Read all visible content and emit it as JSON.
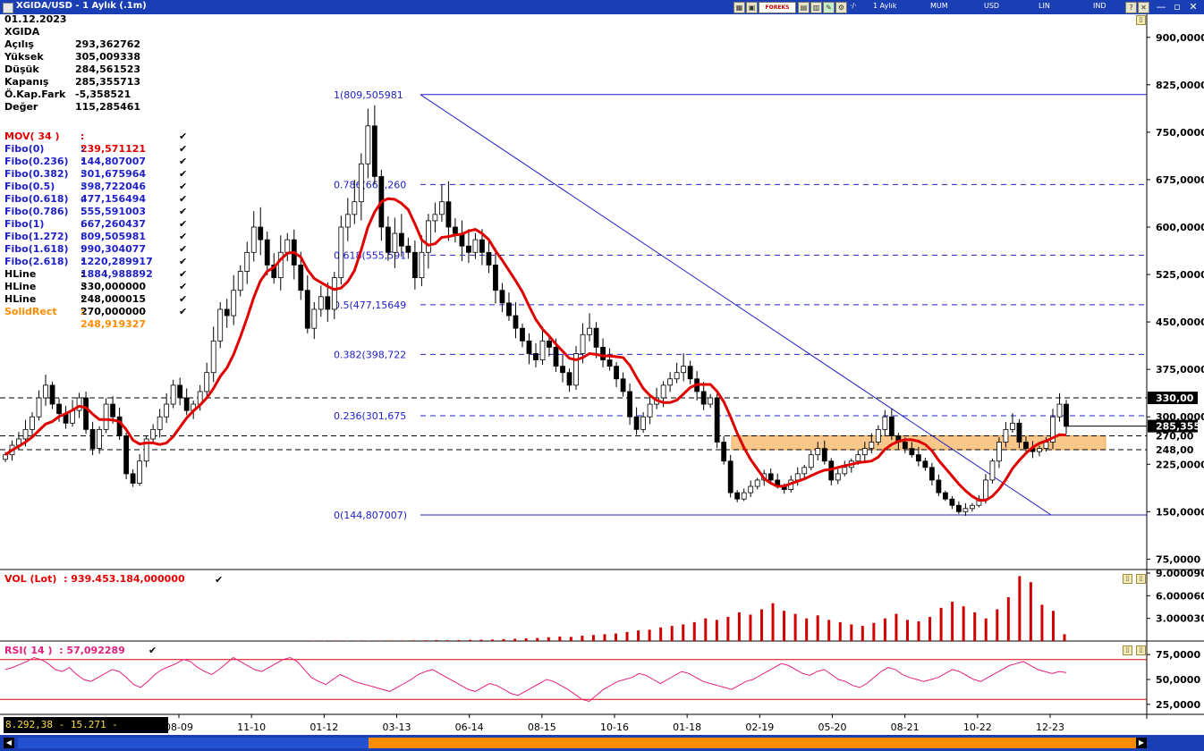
{
  "window": {
    "title": "XGIDA/USD - 1 Aylık (.1m)",
    "toolbar": [
      "1 Aylık",
      "MUM",
      "USD",
      "LIN",
      "IND"
    ],
    "forex_label": "FOREKS"
  },
  "info": {
    "date": "01.12.2023",
    "symbol": "XGIDA",
    "rows": [
      {
        "label": "Açılış",
        "value": "293,362762"
      },
      {
        "label": "Yüksek",
        "value": "305,009338"
      },
      {
        "label": "Düşük",
        "value": "284,561523"
      },
      {
        "label": "Kapanış",
        "value": "285,355713"
      },
      {
        "label": "Ö.Kap.Fark",
        "value": "-5,358521"
      },
      {
        "label": "Değer",
        "value": "115,285461"
      }
    ]
  },
  "indicators": [
    {
      "label": "MOV( 34 )",
      "value": ": 239,571121",
      "color": "#e00000"
    },
    {
      "label": "Fibo(0)",
      "value": ": 144,807007",
      "color": "#2020c8"
    },
    {
      "label": "Fibo(0.236)",
      "value": ": 301,675964",
      "color": "#2020c8"
    },
    {
      "label": "Fibo(0.382)",
      "value": ": 398,722046",
      "color": "#2020c8"
    },
    {
      "label": "Fibo(0.5)",
      "value": ": 477,156494",
      "color": "#2020c8"
    },
    {
      "label": "Fibo(0.618)",
      "value": ": 555,591003",
      "color": "#2020c8"
    },
    {
      "label": "Fibo(0.786)",
      "value": ": 667,260437",
      "color": "#2020c8"
    },
    {
      "label": "Fibo(1)",
      "value": ": 809,505981",
      "color": "#2020c8"
    },
    {
      "label": "Fibo(1.272)",
      "value": ": 990,304077",
      "color": "#2020c8"
    },
    {
      "label": "Fibo(1.618)",
      "value": ": 1220,289917",
      "color": "#2020c8"
    },
    {
      "label": "Fibo(2.618)",
      "value": ": 1884,988892",
      "color": "#2020c8"
    },
    {
      "label": "HLine",
      "value": ": 330,000000",
      "color": "#000000"
    },
    {
      "label": "HLine",
      "value": ": 248,000015",
      "color": "#000000"
    },
    {
      "label": "HLine",
      "value": ": 270,000000",
      "color": "#000000"
    },
    {
      "label": "SolidRect",
      "value": ": 248,919327",
      "color": "#ff8c00"
    }
  ],
  "vol": {
    "label": "VOL (Lot)",
    "value": ": 939.453.184,000000",
    "ticks": [
      "9.000090",
      "6.000060",
      "3.000030"
    ]
  },
  "rsi": {
    "label": "RSI( 14 )",
    "value": ": 57,092289",
    "ticks": [
      "75,0000",
      "50,0000",
      "25,0000"
    ]
  },
  "status_text": "8.292,38 - 15.271 - 15:02:40",
  "chart_data": {
    "type": "candlestick",
    "price_axis": {
      "min": 60,
      "max": 935,
      "ticks": [
        75,
        150,
        225,
        300,
        375,
        450,
        525,
        600,
        675,
        750,
        825,
        900
      ],
      "tick_labels": [
        "75,0000",
        "150,0000",
        "225,0000",
        "300,0000",
        "375,0000",
        "450,0000",
        "525,0000",
        "600,0000",
        "675,0000",
        "750,0000",
        "825,0000",
        "900,0000"
      ]
    },
    "x_tick_labels": [
      "08-09",
      "11-10",
      "01-12",
      "03-13",
      "06-14",
      "08-15",
      "10-16",
      "01-18",
      "02-19",
      "05-20",
      "08-21",
      "10-22",
      "12-23"
    ],
    "fibo_levels": [
      {
        "label": "1(809,505981",
        "value": 809.505981
      },
      {
        "label": "0.786(667,260",
        "value": 667.260437
      },
      {
        "label": "0.618(555,591",
        "value": 555.591003
      },
      {
        "label": "0.5(477,15649",
        "value": 477.156494
      },
      {
        "label": "0.382(398,722",
        "value": 398.722046
      },
      {
        "label": "0.236(301,675",
        "value": 301.675964
      },
      {
        "label": "0(144,807007)",
        "value": 144.807007
      }
    ],
    "hlines": [
      {
        "label": "330,00",
        "value": 330
      },
      {
        "label": "270,00",
        "value": 270
      },
      {
        "label": "248,00",
        "value": 248.000015
      }
    ],
    "last_price_label": "285,355",
    "last_price": 285.355713,
    "solid_rect": {
      "low": 248,
      "high": 270
    },
    "trendline": {
      "from": 809.505981,
      "to": 144.807007
    },
    "close_path": [
      240,
      255,
      265,
      280,
      300,
      330,
      350,
      320,
      305,
      290,
      310,
      330,
      280,
      250,
      280,
      320,
      300,
      270,
      210,
      195,
      230,
      265,
      280,
      300,
      320,
      350,
      330,
      310,
      320,
      340,
      370,
      420,
      470,
      460,
      500,
      530,
      560,
      600,
      580,
      540,
      520,
      560,
      580,
      540,
      500,
      440,
      470,
      490,
      470,
      520,
      600,
      620,
      640,
      700,
      760,
      680,
      600,
      560,
      590,
      570,
      560,
      520,
      560,
      610,
      620,
      640,
      600,
      590,
      570,
      560,
      580,
      560,
      540,
      500,
      480,
      460,
      440,
      420,
      400,
      390,
      420,
      410,
      380,
      370,
      350,
      400,
      430,
      440,
      410,
      390,
      380,
      360,
      340,
      300,
      280,
      300,
      320,
      330,
      350,
      360,
      370,
      380,
      360,
      340,
      320,
      330,
      260,
      230,
      180,
      170,
      180,
      190,
      200,
      210,
      200,
      190,
      185,
      200,
      210,
      220,
      240,
      250,
      230,
      200,
      210,
      220,
      230,
      240,
      250,
      260,
      280,
      300,
      270,
      260,
      250,
      240,
      230,
      220,
      200,
      180,
      170,
      160,
      150,
      155,
      160,
      170,
      200,
      230,
      260,
      280,
      290,
      260,
      250,
      245,
      250,
      260,
      300,
      320,
      285
    ],
    "mov_label": "MOV( 34 )",
    "mov_color": "#e00000",
    "volume": {
      "max": 9000090,
      "values": [
        0.05,
        0.06,
        0.07,
        0.06,
        0.05,
        0.06,
        0.07,
        0.08,
        0.07,
        0.09,
        0.1,
        0.12,
        0.11,
        0.13,
        0.15,
        0.17,
        0.2,
        0.25,
        0.3,
        0.35,
        0.4,
        0.5,
        0.6,
        0.55,
        0.7,
        0.8,
        0.9,
        1.0,
        1.2,
        1.4,
        1.5,
        1.8,
        2.0,
        2.2,
        2.5,
        3.0,
        2.8,
        3.2,
        3.8,
        3.5,
        4.2,
        5.0,
        4.0,
        3.6,
        3.0,
        3.4,
        2.8,
        2.5,
        2.2,
        2.0,
        2.4,
        3.0,
        3.6,
        2.8,
        2.6,
        3.2,
        4.4,
        5.2,
        4.6,
        3.8,
        3.0,
        4.2,
        5.8,
        8.6,
        7.8,
        4.8,
        4.0,
        0.9
      ]
    },
    "rsi": {
      "min": 15,
      "max": 85,
      "upper": 70,
      "lower": 30,
      "values": [
        60,
        62,
        65,
        68,
        72,
        70,
        66,
        60,
        58,
        62,
        55,
        50,
        48,
        52,
        56,
        60,
        58,
        52,
        45,
        42,
        48,
        55,
        60,
        63,
        66,
        70,
        68,
        62,
        58,
        55,
        60,
        66,
        72,
        68,
        64,
        60,
        58,
        62,
        66,
        70,
        72,
        68,
        60,
        52,
        48,
        45,
        50,
        55,
        52,
        48,
        46,
        44,
        42,
        40,
        38,
        42,
        46,
        50,
        55,
        58,
        60,
        56,
        52,
        48,
        44,
        40,
        38,
        42,
        46,
        44,
        40,
        36,
        34,
        38,
        42,
        46,
        50,
        48,
        44,
        40,
        35,
        30,
        28,
        34,
        40,
        44,
        48,
        50,
        52,
        56,
        54,
        50,
        46,
        50,
        54,
        58,
        56,
        52,
        48,
        46,
        44,
        42,
        40,
        44,
        48,
        50,
        54,
        58,
        62,
        66,
        64,
        60,
        56,
        54,
        58,
        60,
        55,
        50,
        48,
        44,
        42,
        46,
        52,
        58,
        62,
        60,
        55,
        52,
        50,
        48,
        50,
        52,
        56,
        60,
        58,
        54,
        50,
        48,
        52,
        56,
        60,
        64,
        66,
        68,
        64,
        60,
        58,
        56,
        58,
        57
      ]
    }
  }
}
